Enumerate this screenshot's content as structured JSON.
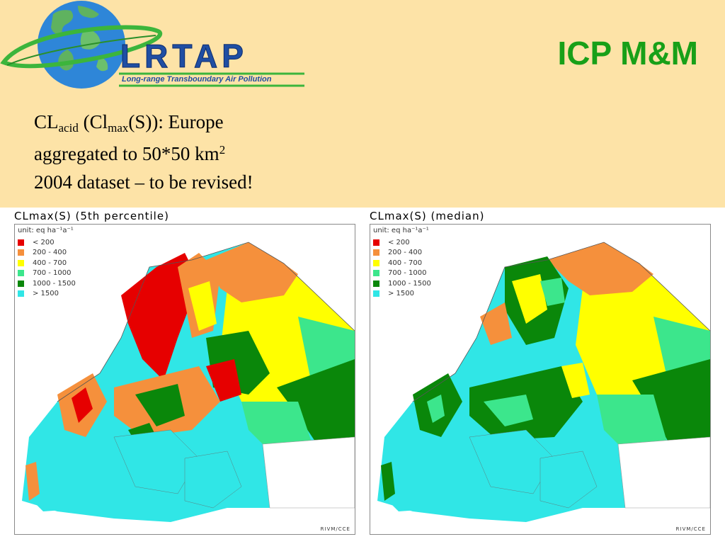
{
  "header": {
    "logo_text": "LRTAP",
    "logo_subtitle": "Long-range Transboundary Air Pollution",
    "title": "ICP M&M",
    "line1_a": "CL",
    "line1_sub1": "acid",
    "line1_b": " (Cl",
    "line1_sub2": "max",
    "line1_c": "(S)): Europe",
    "line2": "aggregated to 50*50 km",
    "line2_sup": "2",
    "line3": "2004 dataset – to be revised!"
  },
  "legend": {
    "unit_label": "unit: eq ha⁻¹a⁻¹",
    "items": [
      {
        "label": "< 200",
        "color": "#e60000"
      },
      {
        "label": "200 - 400",
        "color": "#f5903c"
      },
      {
        "label": "400 - 700",
        "color": "#ffff00"
      },
      {
        "label": "700 - 1000",
        "color": "#3ce68c"
      },
      {
        "label": "1000 - 1500",
        "color": "#0a870a"
      },
      {
        "label": "> 1500",
        "color": "#30e6e6"
      }
    ]
  },
  "maps": [
    {
      "title": "CLmax(S) (5th percentile)",
      "credit": "RIVM/CCE"
    },
    {
      "title": "CLmax(S) (median)",
      "credit": "RIVM/CCE"
    }
  ],
  "colors": {
    "header_bg": "#fde3a7",
    "title_green": "#18a018",
    "logo_blue": "#1f4ea3",
    "globe_blue": "#2e86d8",
    "ring_green": "#3cb53c"
  }
}
